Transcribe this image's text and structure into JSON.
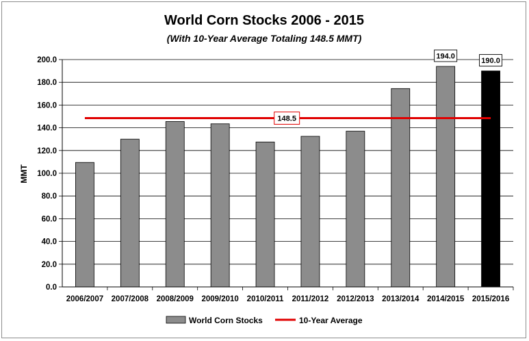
{
  "chart_data": {
    "type": "bar",
    "title": "World Corn Stocks 2006 - 2015",
    "subtitle": "(With 10-Year Average Totaling 148.5 MMT)",
    "ylabel": "MMT",
    "xlabel": "",
    "ylim": [
      0,
      200
    ],
    "ytick_step": 20,
    "ytick_labels": [
      "0.0",
      "20.0",
      "40.0",
      "60.0",
      "80.0",
      "100.0",
      "120.0",
      "140.0",
      "160.0",
      "180.0",
      "200.0"
    ],
    "grid": "horizontal",
    "legend_position": "bottom",
    "categories": [
      "2006/2007",
      "2007/2008",
      "2008/2009",
      "2009/2010",
      "2010/2011",
      "2011/2012",
      "2012/2013",
      "2013/2014",
      "2014/2015",
      "2015/2016"
    ],
    "series": [
      {
        "name": "World Corn Stocks",
        "type": "bar",
        "color": "#8c8c8c",
        "highlight_color": "#000000",
        "highlight_index": 9,
        "values": [
          109.5,
          130.0,
          145.5,
          143.5,
          127.5,
          132.5,
          137.0,
          174.5,
          194.0,
          190.0
        ],
        "data_labels": [
          null,
          null,
          null,
          null,
          null,
          null,
          null,
          null,
          "194.0",
          "190.0"
        ]
      },
      {
        "name": "10-Year Average",
        "type": "line",
        "color": "#e00000",
        "value": 148.5,
        "data_label": "148.5"
      }
    ]
  }
}
